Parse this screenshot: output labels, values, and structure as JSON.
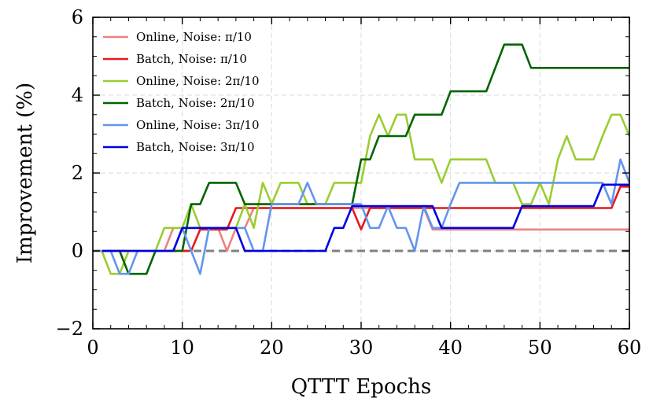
{
  "chart_data": {
    "type": "line",
    "title": "",
    "xlabel": "QTTT Epochs",
    "ylabel": "Improvement (%)",
    "xlim": [
      0,
      60
    ],
    "ylim": [
      -2,
      6
    ],
    "xticks": [
      0,
      10,
      20,
      30,
      40,
      50,
      60
    ],
    "yticks": [
      -2,
      0,
      2,
      4,
      6
    ],
    "xtick_labels": [
      "0",
      "10",
      "20",
      "30",
      "40",
      "50",
      "60"
    ],
    "ytick_labels": [
      "−2",
      "0",
      "2",
      "4",
      "6"
    ],
    "grid": true,
    "legend_position": "top-left",
    "baseline": {
      "y": 0,
      "color": "#808080",
      "style": "dashed"
    },
    "series": [
      {
        "name": "Online, Noise: π/10",
        "color": "#f08080",
        "points": [
          [
            1,
            0
          ],
          [
            8,
            0
          ],
          [
            9,
            0.59
          ],
          [
            14,
            0.59
          ],
          [
            15,
            0
          ],
          [
            16,
            0.59
          ],
          [
            17,
            0.59
          ],
          [
            18,
            1.1
          ],
          [
            37,
            1.1
          ],
          [
            38,
            0.55
          ],
          [
            60,
            0.55
          ]
        ]
      },
      {
        "name": "Batch, Noise: π/10",
        "color": "#e31a1c",
        "points": [
          [
            1,
            0
          ],
          [
            11,
            0
          ],
          [
            12,
            0.55
          ],
          [
            15,
            0.55
          ],
          [
            16,
            1.1
          ],
          [
            29,
            1.1
          ],
          [
            30,
            0.55
          ],
          [
            31,
            1.1
          ],
          [
            58,
            1.1
          ],
          [
            59,
            1.65
          ],
          [
            60,
            1.65
          ]
        ]
      },
      {
        "name": "Online, Noise: 2π/10",
        "color": "#9acd32",
        "points": [
          [
            1,
            0
          ],
          [
            2,
            -0.59
          ],
          [
            3,
            -0.59
          ],
          [
            4,
            0
          ],
          [
            7,
            0
          ],
          [
            8,
            0.59
          ],
          [
            10,
            0.59
          ],
          [
            11,
            1.2
          ],
          [
            12,
            0.59
          ],
          [
            16,
            0.59
          ],
          [
            17,
            1.2
          ],
          [
            18,
            0.59
          ],
          [
            19,
            1.75
          ],
          [
            20,
            1.2
          ],
          [
            21,
            1.75
          ],
          [
            23,
            1.75
          ],
          [
            24,
            1.2
          ],
          [
            26,
            1.2
          ],
          [
            27,
            1.75
          ],
          [
            29,
            1.75
          ],
          [
            30,
            1.75
          ],
          [
            31,
            2.95
          ],
          [
            32,
            3.5
          ],
          [
            33,
            2.95
          ],
          [
            34,
            3.5
          ],
          [
            35,
            3.5
          ],
          [
            36,
            2.35
          ],
          [
            38,
            2.35
          ],
          [
            39,
            1.75
          ],
          [
            40,
            2.35
          ],
          [
            44,
            2.35
          ],
          [
            45,
            1.75
          ],
          [
            47,
            1.75
          ],
          [
            48,
            1.2
          ],
          [
            49,
            1.2
          ],
          [
            50,
            1.75
          ],
          [
            51,
            1.2
          ],
          [
            52,
            2.35
          ],
          [
            53,
            2.95
          ],
          [
            54,
            2.35
          ],
          [
            56,
            2.35
          ],
          [
            57,
            2.95
          ],
          [
            58,
            3.5
          ],
          [
            59,
            3.5
          ],
          [
            60,
            2.95
          ]
        ]
      },
      {
        "name": "Batch, Noise: 2π/10",
        "color": "#006400",
        "points": [
          [
            1,
            0
          ],
          [
            3,
            0
          ],
          [
            4,
            -0.59
          ],
          [
            6,
            -0.59
          ],
          [
            7,
            0
          ],
          [
            10,
            0
          ],
          [
            11,
            1.2
          ],
          [
            12,
            1.2
          ],
          [
            13,
            1.75
          ],
          [
            16,
            1.75
          ],
          [
            17,
            1.2
          ],
          [
            29,
            1.2
          ],
          [
            30,
            2.35
          ],
          [
            31,
            2.35
          ],
          [
            32,
            2.95
          ],
          [
            35,
            2.95
          ],
          [
            36,
            3.5
          ],
          [
            39,
            3.5
          ],
          [
            40,
            4.1
          ],
          [
            44,
            4.1
          ],
          [
            46,
            5.3
          ],
          [
            48,
            5.3
          ],
          [
            49,
            4.7
          ],
          [
            60,
            4.7
          ]
        ]
      },
      {
        "name": "Online, Noise: 3π/10",
        "color": "#6495ed",
        "points": [
          [
            1,
            0
          ],
          [
            2,
            0
          ],
          [
            3,
            -0.59
          ],
          [
            4,
            -0.59
          ],
          [
            5,
            0
          ],
          [
            9,
            0
          ],
          [
            10,
            0.59
          ],
          [
            11,
            0
          ],
          [
            12,
            -0.59
          ],
          [
            13,
            0.59
          ],
          [
            17,
            0.59
          ],
          [
            18,
            0
          ],
          [
            19,
            0
          ],
          [
            20,
            1.2
          ],
          [
            23,
            1.2
          ],
          [
            24,
            1.75
          ],
          [
            25,
            1.2
          ],
          [
            29,
            1.2
          ],
          [
            30,
            1.2
          ],
          [
            31,
            0.59
          ],
          [
            32,
            0.59
          ],
          [
            33,
            1.15
          ],
          [
            34,
            0.59
          ],
          [
            35,
            0.59
          ],
          [
            36,
            0
          ],
          [
            37,
            1.15
          ],
          [
            38,
            0.59
          ],
          [
            39,
            0.59
          ],
          [
            40,
            1.2
          ],
          [
            41,
            1.75
          ],
          [
            57,
            1.75
          ],
          [
            58,
            1.2
          ],
          [
            59,
            2.35
          ],
          [
            60,
            1.75
          ]
        ]
      },
      {
        "name": "Batch, Noise: 3π/10",
        "color": "#0000e0",
        "points": [
          [
            1,
            0
          ],
          [
            9,
            0
          ],
          [
            10,
            0.59
          ],
          [
            16,
            0.59
          ],
          [
            17,
            0
          ],
          [
            26,
            0
          ],
          [
            27,
            0.59
          ],
          [
            28,
            0.59
          ],
          [
            29,
            1.15
          ],
          [
            38,
            1.15
          ],
          [
            39,
            0.59
          ],
          [
            47,
            0.59
          ],
          [
            48,
            1.15
          ],
          [
            56,
            1.15
          ],
          [
            57,
            1.7
          ],
          [
            60,
            1.7
          ]
        ]
      }
    ]
  }
}
